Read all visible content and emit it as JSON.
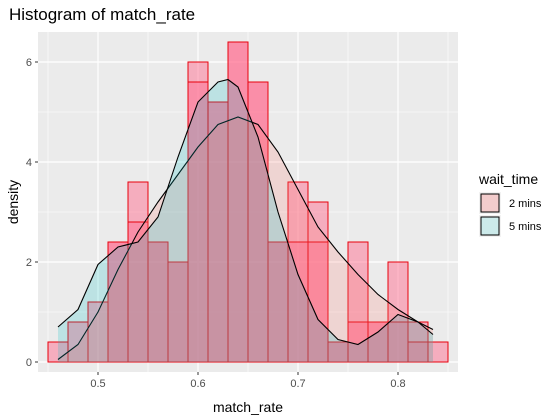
{
  "chart_data": {
    "type": "histogram",
    "title": "Histogram of match_rate",
    "xlabel": "match_rate",
    "ylabel": "density",
    "xlim": [
      0.44,
      0.86
    ],
    "ylim": [
      -0.2,
      6.6
    ],
    "x_ticks": [
      0.5,
      0.6,
      0.7,
      0.8
    ],
    "x_tick_labels": [
      "0.5",
      "0.6",
      "0.7",
      "0.8"
    ],
    "y_ticks": [
      0,
      2,
      4,
      6
    ],
    "y_tick_labels": [
      "0",
      "2",
      "4",
      "6"
    ],
    "grid": true,
    "bin_edges": [
      0.45,
      0.47,
      0.49,
      0.51,
      0.53,
      0.55,
      0.57,
      0.59,
      0.61,
      0.63,
      0.65,
      0.67,
      0.69,
      0.71,
      0.73,
      0.75,
      0.77,
      0.79,
      0.81,
      0.83,
      0.85
    ],
    "legend": {
      "title": "wait_time",
      "position": "right",
      "entries": [
        {
          "label": "2 mins",
          "fill": "#f2cccc",
          "stroke": "#000000"
        },
        {
          "label": "5 mins",
          "fill": "#cceaea",
          "stroke": "#000000"
        }
      ]
    },
    "series": [
      {
        "name": "2 mins",
        "bar_fill": "#ff6f91",
        "bar_stroke": "#e8000b",
        "density_fill": "#f8766d",
        "bar_heights": [
          0.4,
          0.8,
          0,
          2.4,
          3.6,
          2.4,
          2.0,
          6.0,
          5.2,
          6.4,
          5.6,
          2.4,
          3.6,
          3.2,
          0.4,
          2.4,
          0.8,
          2.0,
          0.8,
          0.4
        ],
        "density_curve": {
          "x": [
            0.46,
            0.48,
            0.5,
            0.52,
            0.54,
            0.56,
            0.58,
            0.6,
            0.62,
            0.64,
            0.66,
            0.68,
            0.7,
            0.72,
            0.74,
            0.76,
            0.78,
            0.8,
            0.82,
            0.835
          ],
          "y": [
            0.05,
            0.35,
            1.0,
            1.85,
            2.6,
            3.2,
            3.75,
            4.3,
            4.75,
            4.9,
            4.75,
            4.2,
            3.45,
            2.7,
            2.2,
            1.75,
            1.35,
            1.05,
            0.8,
            0.65
          ]
        }
      },
      {
        "name": "5 mins",
        "bar_fill": "#ff6f91",
        "bar_stroke": "#e8000b",
        "density_fill": "#00bfc4",
        "bar_heights": [
          0,
          0,
          1.2,
          2.4,
          2.8,
          2.4,
          2.0,
          5.6,
          5.2,
          6.4,
          5.6,
          2.4,
          2.4,
          2.4,
          0.4,
          0.8,
          0.8,
          0.8,
          0.4,
          0
        ],
        "density_curve": {
          "x": [
            0.46,
            0.48,
            0.5,
            0.52,
            0.54,
            0.56,
            0.58,
            0.6,
            0.62,
            0.63,
            0.64,
            0.66,
            0.68,
            0.7,
            0.72,
            0.74,
            0.76,
            0.78,
            0.8,
            0.82,
            0.835
          ],
          "y": [
            0.7,
            1.05,
            1.95,
            2.3,
            2.4,
            2.9,
            4.1,
            5.2,
            5.6,
            5.65,
            5.5,
            4.5,
            3.0,
            1.75,
            0.85,
            0.45,
            0.35,
            0.6,
            0.95,
            0.8,
            0.55
          ]
        }
      }
    ]
  }
}
